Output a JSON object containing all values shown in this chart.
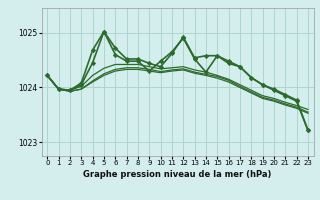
{
  "title": "Graphe pression niveau de la mer (hPa)",
  "background_color": "#d4eeed",
  "grid_color": "#aed4d0",
  "line_color": "#2d6a2d",
  "ylim": [
    1022.75,
    1025.45
  ],
  "yticks": [
    1023,
    1024,
    1025
  ],
  "xlim": [
    -0.5,
    23.5
  ],
  "xticks": [
    0,
    1,
    2,
    3,
    4,
    5,
    6,
    7,
    8,
    9,
    10,
    11,
    12,
    13,
    14,
    15,
    16,
    17,
    18,
    19,
    20,
    21,
    22,
    23
  ],
  "series_smooth1": {
    "x": [
      0,
      1,
      2,
      3,
      4,
      5,
      6,
      7,
      8,
      9,
      10,
      11,
      12,
      13,
      14,
      15,
      16,
      17,
      18,
      19,
      20,
      21,
      22,
      23
    ],
    "y": [
      1024.22,
      1023.97,
      1023.95,
      1024.02,
      1024.22,
      1024.35,
      1024.42,
      1024.42,
      1024.42,
      1024.38,
      1024.34,
      1024.36,
      1024.38,
      1024.32,
      1024.28,
      1024.22,
      1024.15,
      1024.05,
      1023.95,
      1023.85,
      1023.8,
      1023.73,
      1023.67,
      1023.6
    ]
  },
  "series_smooth2": {
    "x": [
      0,
      1,
      2,
      3,
      4,
      5,
      6,
      7,
      8,
      9,
      10,
      11,
      12,
      13,
      14,
      15,
      16,
      17,
      18,
      19,
      20,
      21,
      22,
      23
    ],
    "y": [
      1024.22,
      1023.97,
      1023.93,
      1023.97,
      1024.1,
      1024.22,
      1024.3,
      1024.33,
      1024.33,
      1024.3,
      1024.27,
      1024.3,
      1024.32,
      1024.26,
      1024.22,
      1024.17,
      1024.1,
      1024.0,
      1023.9,
      1023.8,
      1023.75,
      1023.68,
      1023.62,
      1023.53
    ]
  },
  "series_smooth3": {
    "x": [
      0,
      1,
      2,
      3,
      4,
      5,
      6,
      7,
      8,
      9,
      10,
      11,
      12,
      13,
      14,
      15,
      16,
      17,
      18,
      19,
      20,
      21,
      22,
      23
    ],
    "y": [
      1024.22,
      1023.97,
      1023.93,
      1023.97,
      1024.12,
      1024.25,
      1024.33,
      1024.36,
      1024.36,
      1024.33,
      1024.29,
      1024.32,
      1024.34,
      1024.28,
      1024.24,
      1024.2,
      1024.13,
      1024.02,
      1023.92,
      1023.82,
      1023.77,
      1023.7,
      1023.64,
      1023.55
    ]
  },
  "series_spiky": {
    "x": [
      0,
      1,
      2,
      3,
      4,
      5,
      6,
      7,
      8,
      9,
      10,
      11,
      12,
      13,
      14,
      15,
      16,
      17,
      18,
      19,
      20,
      21,
      22,
      23
    ],
    "y": [
      1024.22,
      1023.97,
      1023.95,
      1024.05,
      1024.45,
      1025.02,
      1024.6,
      1024.48,
      1024.48,
      1024.3,
      1024.48,
      1024.65,
      1024.9,
      1024.52,
      1024.28,
      1024.58,
      1024.48,
      1024.38,
      1024.18,
      1024.05,
      1023.95,
      1023.85,
      1023.75,
      1023.22
    ]
  },
  "series_upper": {
    "x": [
      0,
      1,
      2,
      3,
      4,
      5,
      6,
      7,
      8,
      9,
      10,
      11,
      12,
      13,
      14,
      15,
      16,
      17,
      18,
      19,
      20,
      21,
      22,
      23
    ],
    "y": [
      1024.22,
      1023.97,
      1023.95,
      1024.08,
      1024.68,
      1025.02,
      1024.72,
      1024.52,
      1024.52,
      1024.44,
      1024.38,
      1024.62,
      1024.92,
      1024.54,
      1024.58,
      1024.58,
      1024.44,
      1024.38,
      1024.18,
      1024.05,
      1023.97,
      1023.87,
      1023.77,
      1023.22
    ]
  }
}
